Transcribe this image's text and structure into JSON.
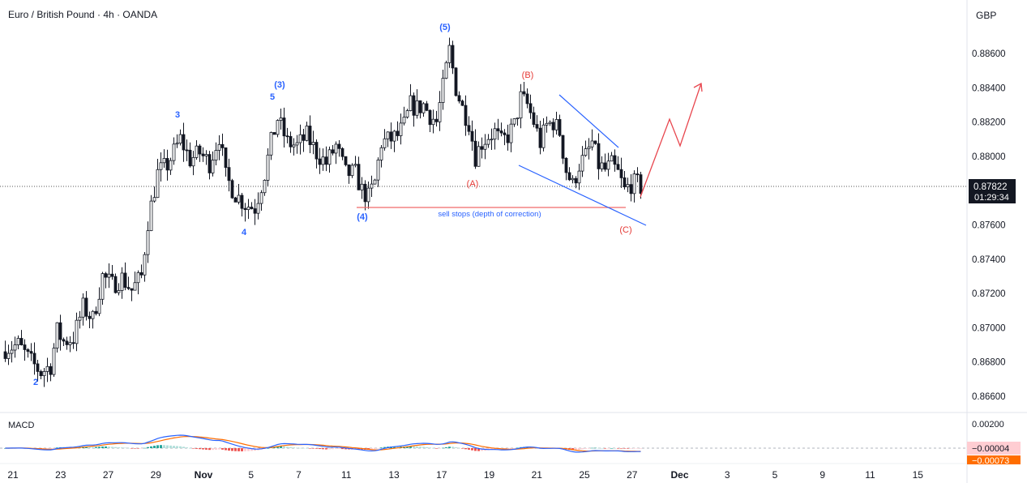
{
  "header": {
    "symbol_title": "Euro / British Pound · 4h · OANDA",
    "currency": "GBP"
  },
  "colors": {
    "candle": "#131722",
    "wave_blue": "#2962ff",
    "wave_red": "#e53935",
    "support_line": "#f06a6a",
    "projection": "#e8464e",
    "macd_line": "#2962ff",
    "signal_line": "#ff6d00",
    "hist_pos_strong": "#26a69a",
    "hist_pos_weak": "#b2dfdb",
    "hist_neg_strong": "#ef5350",
    "hist_neg_weak": "#ffcdd2"
  },
  "chart_data": {
    "type": "candlestick",
    "instrument": "Euro / British Pound",
    "interval": "4h",
    "source": "OANDA",
    "currency": "GBP",
    "ylim": [
      0.8651,
      0.8872
    ],
    "y_ticks": [
      "0.88600",
      "0.88400",
      "0.88200",
      "0.88000",
      "0.87800",
      "0.87600",
      "0.87400",
      "0.87200",
      "0.87000",
      "0.86800",
      "0.86600"
    ],
    "x_ticks": [
      "21",
      "23",
      "27",
      "29",
      "Nov",
      "5",
      "7",
      "11",
      "13",
      "17",
      "19",
      "21",
      "25",
      "27",
      "Dec",
      "3",
      "5",
      "9",
      "11",
      "15"
    ],
    "current_price": "0.87822",
    "countdown": "01:29:34",
    "anchors": [
      [
        0,
        0.8688
      ],
      [
        4,
        0.869
      ],
      [
        8,
        0.868
      ],
      [
        11,
        0.8674
      ],
      [
        14,
        0.8678
      ],
      [
        16,
        0.8698
      ],
      [
        18,
        0.8692
      ],
      [
        21,
        0.8694
      ],
      [
        24,
        0.8712
      ],
      [
        27,
        0.8705
      ],
      [
        30,
        0.873
      ],
      [
        33,
        0.8725
      ],
      [
        36,
        0.8729
      ],
      [
        39,
        0.8722
      ],
      [
        42,
        0.873
      ],
      [
        44,
        0.8762
      ],
      [
        47,
        0.879
      ],
      [
        50,
        0.8795
      ],
      [
        54,
        0.881
      ],
      [
        57,
        0.8798
      ],
      [
        60,
        0.8802
      ],
      [
        63,
        0.8796
      ],
      [
        66,
        0.8812
      ],
      [
        68,
        0.8788
      ],
      [
        71,
        0.8778
      ],
      [
        74,
        0.8772
      ],
      [
        77,
        0.877
      ],
      [
        80,
        0.879
      ],
      [
        82,
        0.8808
      ],
      [
        84,
        0.8822
      ],
      [
        87,
        0.8808
      ],
      [
        90,
        0.8806
      ],
      [
        93,
        0.8812
      ],
      [
        96,
        0.8802
      ],
      [
        99,
        0.8796
      ],
      [
        102,
        0.8806
      ],
      [
        105,
        0.879
      ],
      [
        108,
        0.879
      ],
      [
        110,
        0.878
      ],
      [
        112,
        0.8776
      ],
      [
        114,
        0.8785
      ],
      [
        116,
        0.8808
      ],
      [
        119,
        0.881
      ],
      [
        121,
        0.8812
      ],
      [
        123,
        0.8818
      ],
      [
        125,
        0.883
      ],
      [
        127,
        0.8828
      ],
      [
        129,
        0.883
      ],
      [
        131,
        0.8824
      ],
      [
        133,
        0.882
      ],
      [
        135,
        0.884
      ],
      [
        137,
        0.8862
      ],
      [
        139,
        0.884
      ],
      [
        141,
        0.8828
      ],
      [
        143,
        0.882
      ],
      [
        145,
        0.88
      ],
      [
        147,
        0.8808
      ],
      [
        149,
        0.8812
      ],
      [
        151,
        0.8814
      ],
      [
        153,
        0.8808
      ],
      [
        155,
        0.8812
      ],
      [
        157,
        0.8818
      ],
      [
        159,
        0.8834
      ],
      [
        161,
        0.883
      ],
      [
        163,
        0.882
      ],
      [
        165,
        0.8808
      ],
      [
        167,
        0.8818
      ],
      [
        169,
        0.882
      ],
      [
        171,
        0.8814
      ],
      [
        173,
        0.8792
      ],
      [
        175,
        0.8783
      ],
      [
        177,
        0.8795
      ],
      [
        179,
        0.88
      ],
      [
        181,
        0.8808
      ],
      [
        183,
        0.8795
      ],
      [
        185,
        0.8792
      ],
      [
        187,
        0.8795
      ],
      [
        189,
        0.879
      ],
      [
        191,
        0.878
      ],
      [
        193,
        0.8784
      ],
      [
        195,
        0.8784
      ],
      [
        196,
        0.8782
      ]
    ],
    "wave_labels": [
      {
        "text": "2",
        "color": "blue"
      },
      {
        "text": "3",
        "color": "blue"
      },
      {
        "text": "4",
        "color": "blue"
      },
      {
        "text": "5",
        "color": "blue"
      },
      {
        "text": "(3)",
        "color": "blue"
      },
      {
        "text": "(4)",
        "color": "blue"
      },
      {
        "text": "(5)",
        "color": "blue"
      },
      {
        "text": "(A)",
        "color": "red"
      },
      {
        "text": "(B)",
        "color": "red"
      },
      {
        "text": "(C)",
        "color": "red"
      }
    ],
    "annotation": "sell stops (depth of correction)",
    "macd": {
      "label": "MACD",
      "y_tick": "0.00200",
      "macd_value": "−0.00004",
      "signal_value": "−0.00073"
    }
  }
}
